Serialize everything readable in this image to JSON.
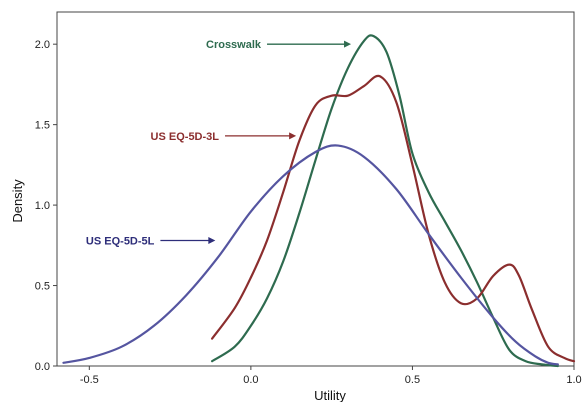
{
  "chart_data": {
    "type": "line",
    "title": "",
    "xlabel": "Utility",
    "ylabel": "Density",
    "xlim": [
      -0.6,
      1.0
    ],
    "ylim": [
      0.0,
      2.2
    ],
    "x_ticks": [
      -0.5,
      0.0,
      0.5,
      1.0
    ],
    "x_tick_labels": [
      "-0.5",
      "0.0",
      "0.5",
      "1.0"
    ],
    "y_ticks": [
      0.0,
      0.5,
      1.0,
      1.5,
      2.0
    ],
    "y_tick_labels": [
      "0.0",
      "0.5",
      "1.0",
      "1.5",
      "2.0"
    ],
    "grid": false,
    "legend": "none",
    "series": [
      {
        "name": "Crosswalk",
        "color": "#2e6b4f",
        "points": [
          [
            -0.12,
            0.03
          ],
          [
            -0.05,
            0.12
          ],
          [
            0.0,
            0.25
          ],
          [
            0.05,
            0.42
          ],
          [
            0.1,
            0.65
          ],
          [
            0.15,
            0.95
          ],
          [
            0.2,
            1.28
          ],
          [
            0.25,
            1.6
          ],
          [
            0.3,
            1.85
          ],
          [
            0.35,
            2.02
          ],
          [
            0.38,
            2.05
          ],
          [
            0.42,
            1.95
          ],
          [
            0.46,
            1.68
          ],
          [
            0.5,
            1.32
          ],
          [
            0.55,
            1.08
          ],
          [
            0.6,
            0.9
          ],
          [
            0.65,
            0.72
          ],
          [
            0.7,
            0.52
          ],
          [
            0.75,
            0.3
          ],
          [
            0.8,
            0.1
          ],
          [
            0.85,
            0.03
          ],
          [
            0.9,
            0.01
          ],
          [
            0.95,
            0.0
          ]
        ]
      },
      {
        "name": "US EQ-5D-3L",
        "color": "#8b2e2e",
        "points": [
          [
            -0.12,
            0.17
          ],
          [
            -0.05,
            0.36
          ],
          [
            0.0,
            0.55
          ],
          [
            0.05,
            0.78
          ],
          [
            0.1,
            1.08
          ],
          [
            0.15,
            1.4
          ],
          [
            0.2,
            1.62
          ],
          [
            0.25,
            1.68
          ],
          [
            0.3,
            1.68
          ],
          [
            0.35,
            1.74
          ],
          [
            0.4,
            1.8
          ],
          [
            0.45,
            1.64
          ],
          [
            0.5,
            1.25
          ],
          [
            0.55,
            0.82
          ],
          [
            0.6,
            0.52
          ],
          [
            0.65,
            0.39
          ],
          [
            0.7,
            0.42
          ],
          [
            0.75,
            0.56
          ],
          [
            0.8,
            0.63
          ],
          [
            0.83,
            0.56
          ],
          [
            0.87,
            0.35
          ],
          [
            0.92,
            0.12
          ],
          [
            0.97,
            0.05
          ],
          [
            1.0,
            0.03
          ]
        ]
      },
      {
        "name": "US EQ-5D-5L",
        "color": "#5555a0",
        "points": [
          [
            -0.58,
            0.02
          ],
          [
            -0.5,
            0.05
          ],
          [
            -0.4,
            0.12
          ],
          [
            -0.3,
            0.25
          ],
          [
            -0.2,
            0.44
          ],
          [
            -0.1,
            0.68
          ],
          [
            0.0,
            0.96
          ],
          [
            0.1,
            1.18
          ],
          [
            0.2,
            1.33
          ],
          [
            0.27,
            1.37
          ],
          [
            0.35,
            1.3
          ],
          [
            0.45,
            1.1
          ],
          [
            0.55,
            0.82
          ],
          [
            0.65,
            0.55
          ],
          [
            0.75,
            0.3
          ],
          [
            0.82,
            0.15
          ],
          [
            0.88,
            0.06
          ],
          [
            0.92,
            0.02
          ],
          [
            0.95,
            0.01
          ]
        ]
      }
    ],
    "annotations": [
      {
        "text": "Crosswalk",
        "series": "Crosswalk",
        "color": "#2e6b4f",
        "arrow_from": [
          0.05,
          2.0
        ],
        "arrow_to": [
          0.31,
          2.0
        ]
      },
      {
        "text": "US EQ-5D-3L",
        "series": "US EQ-5D-3L",
        "color": "#8b2e2e",
        "arrow_from": [
          -0.08,
          1.43
        ],
        "arrow_to": [
          0.14,
          1.43
        ]
      },
      {
        "text": "US EQ-5D-5L",
        "series": "US EQ-5D-5L",
        "color": "#2e2e7a",
        "arrow_from": [
          -0.28,
          0.78
        ],
        "arrow_to": [
          -0.11,
          0.78
        ]
      }
    ]
  }
}
